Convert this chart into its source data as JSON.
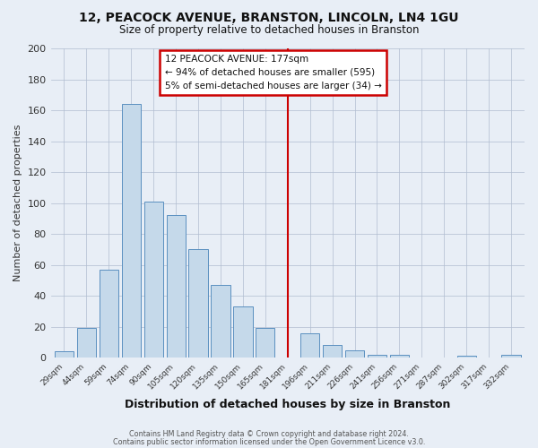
{
  "title": "12, PEACOCK AVENUE, BRANSTON, LINCOLN, LN4 1GU",
  "subtitle": "Size of property relative to detached houses in Branston",
  "xlabel": "Distribution of detached houses by size in Branston",
  "ylabel": "Number of detached properties",
  "bar_labels": [
    "29sqm",
    "44sqm",
    "59sqm",
    "74sqm",
    "90sqm",
    "105sqm",
    "120sqm",
    "135sqm",
    "150sqm",
    "165sqm",
    "181sqm",
    "196sqm",
    "211sqm",
    "226sqm",
    "241sqm",
    "256sqm",
    "271sqm",
    "287sqm",
    "302sqm",
    "317sqm",
    "332sqm"
  ],
  "bar_values": [
    4,
    19,
    57,
    164,
    101,
    92,
    70,
    47,
    33,
    19,
    0,
    16,
    8,
    5,
    2,
    2,
    0,
    0,
    1,
    0,
    2
  ],
  "bar_color": "#c5d9ea",
  "bar_edge_color": "#5b90c0",
  "vline_color": "#cc0000",
  "annotation_text": "12 PEACOCK AVENUE: 177sqm\n← 94% of detached houses are smaller (595)\n5% of semi-detached houses are larger (34) →",
  "annotation_box_color": "#ffffff",
  "annotation_box_edge": "#cc0000",
  "ylim": [
    0,
    200
  ],
  "yticks": [
    0,
    20,
    40,
    60,
    80,
    100,
    120,
    140,
    160,
    180,
    200
  ],
  "footnote1": "Contains HM Land Registry data © Crown copyright and database right 2024.",
  "footnote2": "Contains public sector information licensed under the Open Government Licence v3.0.",
  "bg_color": "#e8eef6",
  "plot_bg_color": "#e8eef6"
}
